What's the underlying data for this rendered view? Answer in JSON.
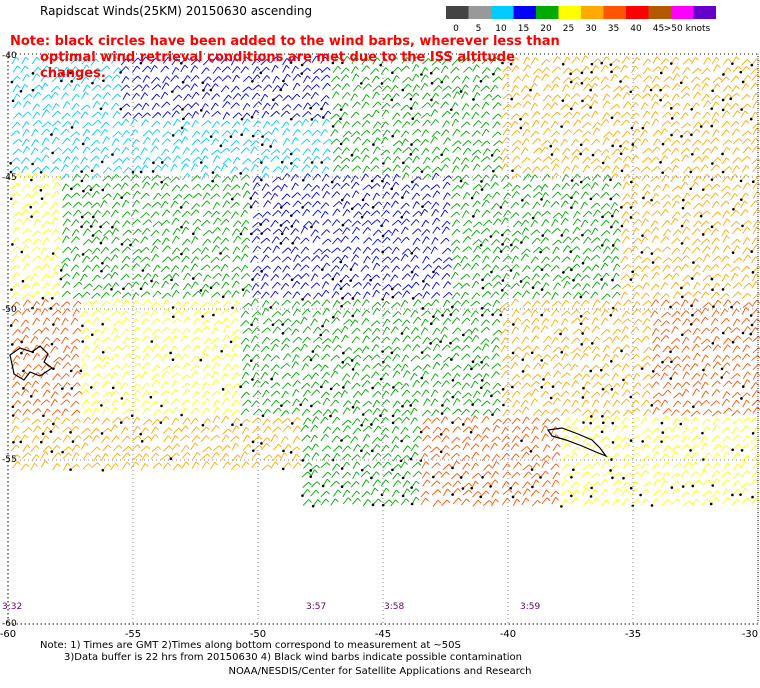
{
  "header": {
    "title": "Rapidscat Winds(25KM) 20150630 ascending",
    "scale_labels": [
      "0",
      "5",
      "10",
      "15",
      "20",
      "25",
      "30",
      "35",
      "40",
      "45",
      ">50 knots"
    ],
    "scale_colors": [
      "#444444",
      "#999999",
      "#00ccff",
      "#0000ff",
      "#00aa00",
      "#ffff00",
      "#ffaa00",
      "#ff5500",
      "#ff0000",
      "#b35900",
      "#ff00ff",
      "#6600cc"
    ]
  },
  "note": {
    "line1": "Note: black circles have been added to the wind barbs, wherever less than",
    "line2": "optimal wind retrieval conditions are met due to the ISS altitude changes."
  },
  "axes": {
    "lat_labels": [
      "-40",
      "-45",
      "-50",
      "-55",
      "-60"
    ],
    "lon_labels": [
      "-60",
      "-55",
      "-50",
      "-45",
      "-40",
      "-35",
      "-30"
    ]
  },
  "pass_times": [
    "3:32",
    "3:57",
    "3:58",
    "3:59"
  ],
  "footer": {
    "line1": "Note: 1) Times are GMT 2)Times along bottom correspond to measurement at ~50S",
    "line2": "3)Data buffer is 22 hrs from 20150630 4) Black wind barbs indicate possible contamination",
    "credit": "NOAA/NESDIS/Center for Satellite Applications and Research"
  }
}
